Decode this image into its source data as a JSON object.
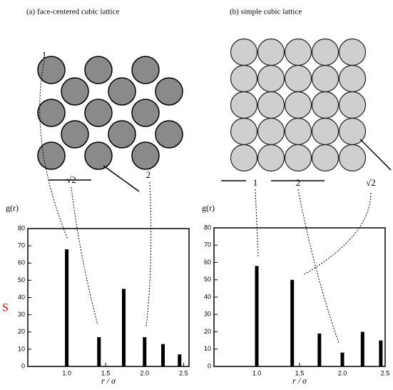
{
  "chart_data": [
    {
      "type": "bar",
      "title": "(a)  face-centered cubic lattice",
      "y_label": "g(r)",
      "x_label": "r / σ",
      "annotations": [
        "1",
        "√2",
        "2"
      ],
      "x": [
        1.0,
        1.414,
        1.732,
        2.0,
        2.236,
        2.449
      ],
      "values": [
        68,
        17,
        45,
        17,
        13,
        7
      ],
      "color": "#000000",
      "xlim": [
        0.5,
        2.57
      ],
      "ylim": [
        0,
        80
      ],
      "xticks": [
        {
          "value": 1,
          "label": "1.0"
        },
        {
          "value": 1.5,
          "label": "1.5"
        },
        {
          "value": 2,
          "label": "2.0"
        },
        {
          "value": 2.5,
          "label": "2.5"
        }
      ],
      "yticks": [
        0,
        10,
        20,
        30,
        40,
        50,
        60,
        70,
        80
      ]
    },
    {
      "type": "bar",
      "title": "(b) simple cubic lattice",
      "y_label": "g(r)",
      "x_label": "r / σ",
      "annotations": [
        "1",
        "2",
        "√2"
      ],
      "x": [
        1.0,
        1.414,
        1.732,
        2.0,
        2.236,
        2.449
      ],
      "values": [
        58,
        50,
        19,
        8,
        20,
        15
      ],
      "color": "#000000",
      "xlim": [
        0.5,
        2.5
      ],
      "ylim": [
        0,
        80
      ],
      "xticks": [
        {
          "value": 1,
          "label": "1.0"
        },
        {
          "value": 1.5,
          "label": "1.5"
        },
        {
          "value": 2,
          "label": "2.0"
        },
        {
          "value": 2.5,
          "label": "2.5"
        }
      ],
      "yticks": [
        0,
        10,
        20,
        30,
        40,
        50,
        60,
        70,
        80
      ]
    }
  ],
  "margin_text": "S"
}
